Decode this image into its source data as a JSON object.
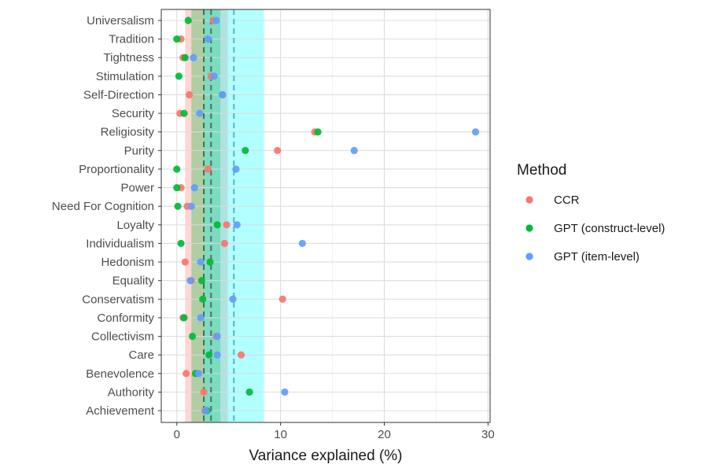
{
  "chart_data": {
    "type": "scatter",
    "xlabel": "Variance explained (%)",
    "ylabel": "",
    "xlim": [
      -1.5,
      30.2
    ],
    "xticks": [
      0,
      10,
      20,
      30
    ],
    "grid": true,
    "legend": {
      "title": "Method",
      "placement": "right",
      "entries": [
        {
          "name": "CCR",
          "color": "#F8766D"
        },
        {
          "name": "GPT (construct-level)",
          "color": "#00BA38"
        },
        {
          "name": "GPT (item-level)",
          "color": "#619CFF"
        }
      ]
    },
    "categories": [
      "Universalism",
      "Tradition",
      "Tightness",
      "Stimulation",
      "Self-Direction",
      "Security",
      "Religiosity",
      "Purity",
      "Proportionality",
      "Power",
      "Need For Cognition",
      "Loyalty",
      "Individualism",
      "Hedonism",
      "Equality",
      "Conservatism",
      "Conformity",
      "Collectivism",
      "Care",
      "Benevolence",
      "Authority",
      "Achievement"
    ],
    "series": [
      {
        "name": "CCR",
        "color": "#F8766D",
        "values": [
          3.5,
          0.4,
          0.6,
          3.3,
          1.2,
          0.3,
          13.3,
          9.7,
          3.0,
          0.4,
          1.0,
          4.8,
          4.6,
          0.8,
          1.4,
          10.2,
          0.6,
          3.8,
          6.2,
          0.9,
          2.6,
          2.7
        ]
      },
      {
        "name": "GPT (construct-level)",
        "color": "#00BA38",
        "values": [
          1.1,
          0.0,
          0.8,
          0.2,
          4.4,
          0.7,
          13.6,
          6.6,
          0.0,
          0.0,
          0.1,
          3.9,
          0.4,
          3.2,
          2.4,
          2.5,
          0.7,
          1.5,
          3.1,
          1.8,
          7.0,
          2.9
        ]
      },
      {
        "name": "GPT (item-level)",
        "color": "#619CFF",
        "values": [
          3.8,
          3.0,
          1.6,
          3.6,
          4.4,
          2.2,
          28.8,
          17.1,
          5.7,
          1.7,
          1.4,
          5.8,
          12.1,
          2.3,
          1.3,
          5.4,
          2.3,
          3.9,
          3.9,
          2.1,
          10.4,
          2.8
        ]
      }
    ],
    "bands": [
      {
        "series": "CCR",
        "from": 0.8,
        "to": 4.9,
        "color": "#F8766D"
      },
      {
        "series": "GPT (construct-level)",
        "from": 1.4,
        "to": 4.2,
        "color": "#00BA38"
      },
      {
        "series": "GPT (item-level)",
        "from": 2.6,
        "to": 8.4,
        "color": "#00FFFF"
      }
    ],
    "reference_lines": [
      {
        "series": "CCR",
        "x": 3.3,
        "color": "#555555"
      },
      {
        "series": "GPT (construct-level)",
        "x": 2.6,
        "color": "#3a5a3a"
      },
      {
        "series": "GPT (item-level)",
        "x": 5.5,
        "color": "#4aa3c4"
      }
    ]
  }
}
